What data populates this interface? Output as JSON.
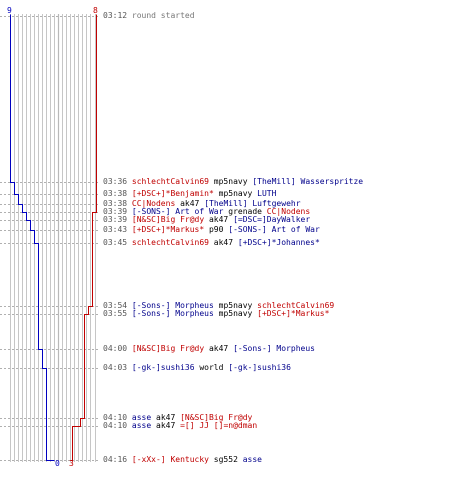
{
  "colors": {
    "red": "#c00000",
    "blue": "#0000c0",
    "grid": "#b8b8b8",
    "dash": "#b0b0b0",
    "time": "#555555"
  },
  "top_labels": {
    "blue_score": "9",
    "red_score": "8"
  },
  "bottom_labels": {
    "blue_score": "0",
    "red_score": "3"
  },
  "events": [
    {
      "time": "03:12",
      "desc": "round started"
    },
    {
      "time": "03:36",
      "killer": "schlechtCalvin69",
      "killer_team": "red",
      "weapon": "mp5navy",
      "victim": "[TheMill] Wasserspritze",
      "victim_team": "blue"
    },
    {
      "time": "03:38",
      "killer": "[+DSC+]*Benjamin*",
      "killer_team": "red",
      "weapon": "mp5navy",
      "victim": "LUTH",
      "victim_team": "blue"
    },
    {
      "time": "03:38",
      "killer": "CC|Nodens",
      "killer_team": "red",
      "weapon": "ak47",
      "victim": "[TheMill] Luftgewehr",
      "victim_team": "blue"
    },
    {
      "time": "03:39",
      "killer": "[-SONS-] Art of War",
      "killer_team": "blue",
      "weapon": "grenade",
      "victim": "CC|Nodens",
      "victim_team": "red"
    },
    {
      "time": "03:39",
      "killer": "[N&SC]Big Fr@dy",
      "killer_team": "red",
      "weapon": "ak47",
      "victim": "[=DSC=]DayWalker",
      "victim_team": "blue"
    },
    {
      "time": "03:43",
      "killer": "[+DSC+]*Markus*",
      "killer_team": "red",
      "weapon": "p90",
      "victim": "[-SONS-] Art of War",
      "victim_team": "blue"
    },
    {
      "time": "03:45",
      "killer": "schlechtCalvin69",
      "killer_team": "red",
      "weapon": "ak47",
      "victim": "[+DSC+]*Johannes*",
      "victim_team": "blue"
    },
    {
      "time": "03:54",
      "killer": "[-Sons-] Morpheus",
      "killer_team": "blue",
      "weapon": "mp5navy",
      "victim": "schlechtCalvin69",
      "victim_team": "red"
    },
    {
      "time": "03:55",
      "killer": "[-Sons-] Morpheus",
      "killer_team": "blue",
      "weapon": "mp5navy",
      "victim": "[+DSC+]*Markus*",
      "victim_team": "red"
    },
    {
      "time": "04:00",
      "killer": "[N&SC]Big Fr@dy",
      "killer_team": "red",
      "weapon": "ak47",
      "victim": "[-Sons-] Morpheus",
      "victim_team": "blue"
    },
    {
      "time": "04:03",
      "killer": "[-gk-]sushi36",
      "killer_team": "blue",
      "weapon": "world",
      "victim": "[-gk-]sushi36",
      "victim_team": "blue"
    },
    {
      "time": "04:10",
      "killer": "asse",
      "killer_team": "blue",
      "weapon": "ak47",
      "victim": "[N&SC]Big Fr@dy",
      "victim_team": "red"
    },
    {
      "time": "04:10",
      "killer": "asse",
      "killer_team": "blue",
      "weapon": "ak47",
      "victim": "=[] JJ []=n@dman",
      "victim_team": "red"
    },
    {
      "time": "04:16",
      "killer": "[-xXx-] Kentucky",
      "killer_team": "red",
      "weapon": "sg552",
      "victim": "asse",
      "victim_team": "blue"
    }
  ],
  "blue_steps": [
    9,
    8,
    7,
    6,
    5,
    4,
    3,
    2,
    1,
    0
  ],
  "red_steps": [
    8,
    7,
    6,
    5,
    4,
    3
  ]
}
